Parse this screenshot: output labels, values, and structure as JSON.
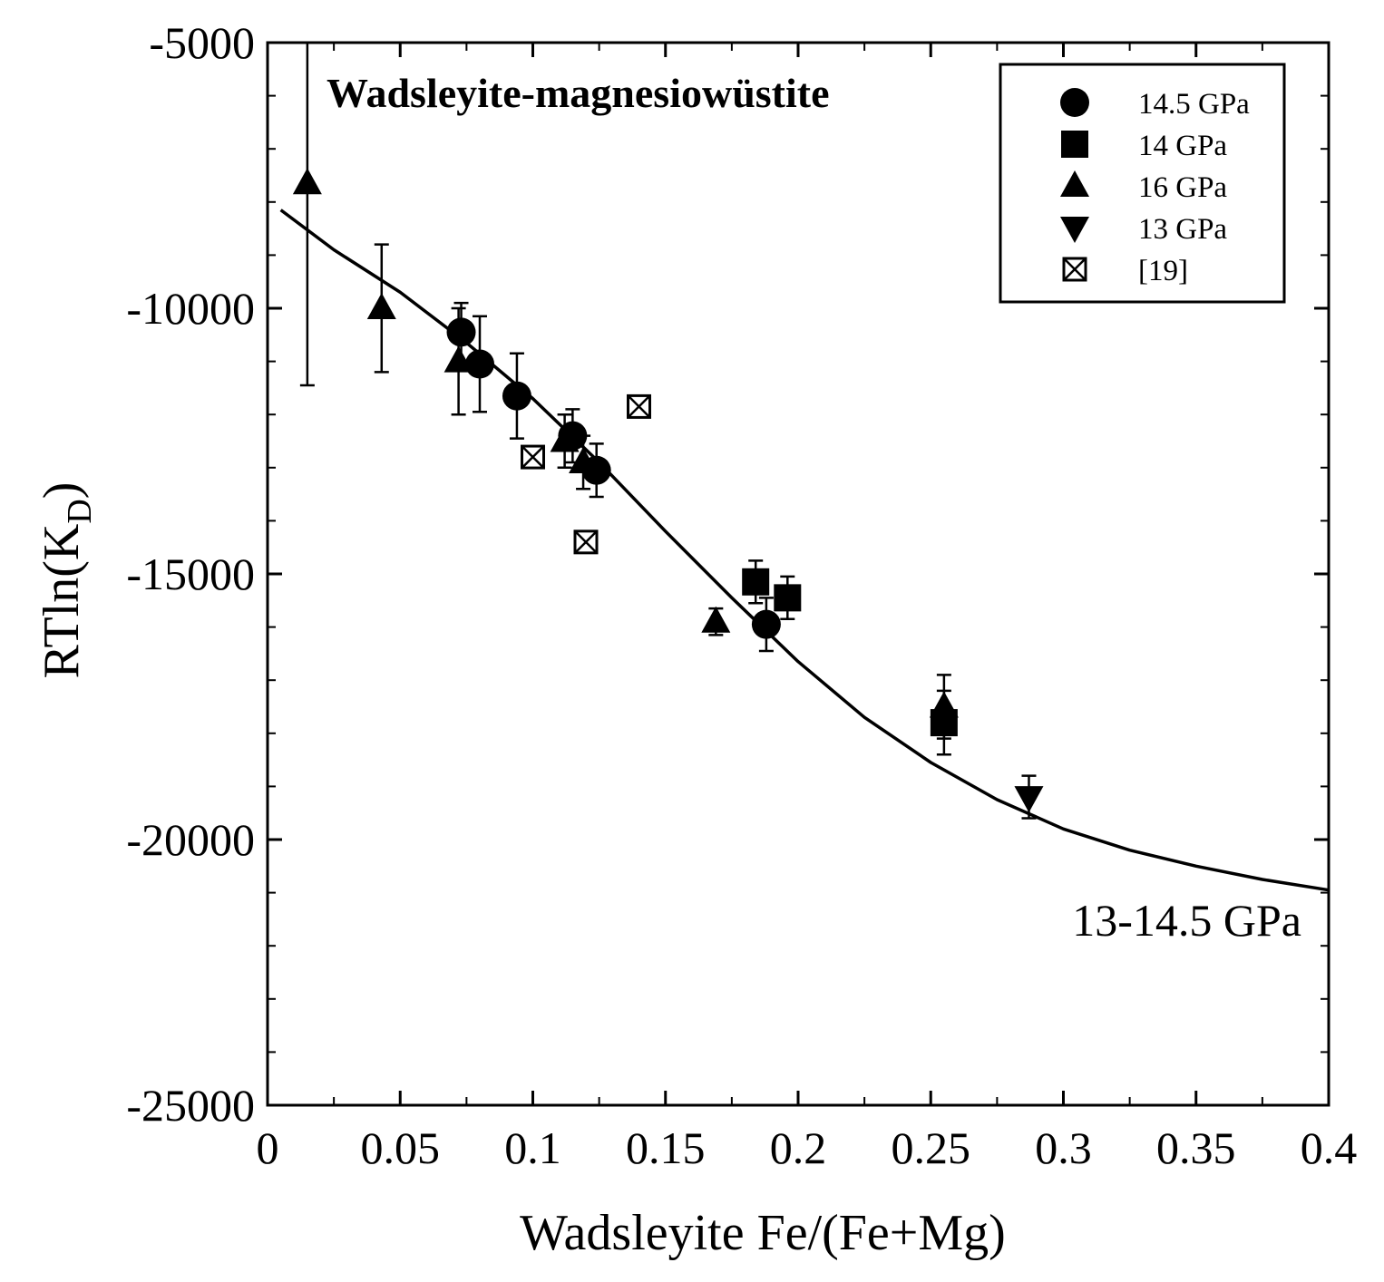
{
  "chart_data": {
    "type": "scatter",
    "title": "Wadsleyite-magnesiowüstite",
    "xlabel": "Wadsleyite Fe/(Fe+Mg)",
    "ylabel_main": "RTln(K",
    "ylabel_sub": "D",
    "ylabel_close": ")",
    "xlim": [
      0,
      0.4
    ],
    "ylim": [
      -25000,
      -5000
    ],
    "x_ticks": [
      0,
      0.05,
      0.1,
      0.15,
      0.2,
      0.25,
      0.3,
      0.35,
      0.4
    ],
    "x_tick_labels": [
      "0",
      "0.05",
      "0.1",
      "0.15",
      "0.2",
      "0.25",
      "0.3",
      "0.35",
      "0.4"
    ],
    "y_ticks": [
      -25000,
      -20000,
      -15000,
      -10000,
      -5000
    ],
    "y_tick_labels": [
      "-25000",
      "-20000",
      "-15000",
      "-10000",
      "-5000"
    ],
    "grid": false,
    "legend_position": "top-right",
    "annotation": "13-14.5 GPa",
    "series": [
      {
        "name": "14.5 GPa",
        "marker": "circle",
        "points": [
          {
            "x": 0.073,
            "y": -10450,
            "err": 550
          },
          {
            "x": 0.08,
            "y": -11050,
            "err": 900
          },
          {
            "x": 0.094,
            "y": -11650,
            "err": 800
          },
          {
            "x": 0.115,
            "y": -12400,
            "err": 500
          },
          {
            "x": 0.124,
            "y": -13050,
            "err": 500
          },
          {
            "x": 0.188,
            "y": -15950,
            "err": 500
          }
        ]
      },
      {
        "name": "14 GPa",
        "marker": "square",
        "points": [
          {
            "x": 0.184,
            "y": -15150,
            "err": 400
          },
          {
            "x": 0.196,
            "y": -15450,
            "err": 400
          },
          {
            "x": 0.255,
            "y": -17800,
            "err": 600
          }
        ]
      },
      {
        "name": "16 GPa",
        "marker": "triangle-up",
        "points": [
          {
            "x": 0.015,
            "y": -7650,
            "err": 3800
          },
          {
            "x": 0.043,
            "y": -10000,
            "err": 1200
          },
          {
            "x": 0.072,
            "y": -11000,
            "err": 1000
          },
          {
            "x": 0.112,
            "y": -12500,
            "err": 500
          },
          {
            "x": 0.119,
            "y": -12900,
            "err": 500
          },
          {
            "x": 0.169,
            "y": -15900,
            "err": 250
          },
          {
            "x": 0.255,
            "y": -17500,
            "err": 600
          }
        ]
      },
      {
        "name": "13 GPa",
        "marker": "triangle-down",
        "points": [
          {
            "x": 0.287,
            "y": -19200,
            "err": 400
          }
        ]
      },
      {
        "name": "[19]",
        "marker": "crossed-square",
        "points": [
          {
            "x": 0.1,
            "y": -12800
          },
          {
            "x": 0.12,
            "y": -14400
          },
          {
            "x": 0.14,
            "y": -11850
          }
        ]
      }
    ],
    "fit_curve": {
      "x": [
        0.005,
        0.025,
        0.05,
        0.075,
        0.1,
        0.125,
        0.15,
        0.175,
        0.2,
        0.225,
        0.25,
        0.275,
        0.3,
        0.325,
        0.35,
        0.375,
        0.4
      ],
      "y": [
        -8150,
        -8900,
        -9700,
        -10650,
        -11700,
        -12900,
        -14200,
        -15450,
        -16650,
        -17700,
        -18550,
        -19250,
        -19800,
        -20200,
        -20500,
        -20750,
        -20950
      ]
    }
  }
}
